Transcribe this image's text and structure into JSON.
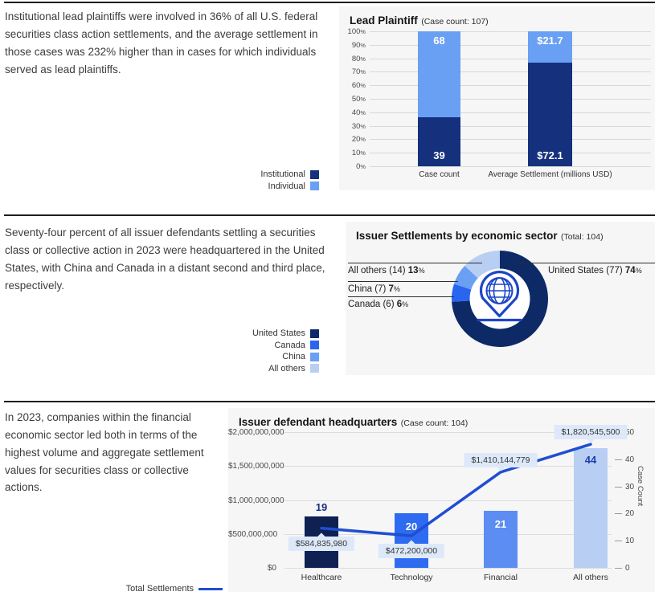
{
  "sections": [
    {
      "text": "Institutional lead plaintiffs were involved in 36% of all U.S. federal securities class action settlements, and the average settlement in those cases was 232% higher than in cases for which individuals served as lead plaintiffs.",
      "legend": [
        {
          "label": "Institutional",
          "color": "#15317E",
          "swatch": "square"
        },
        {
          "label": "Individual",
          "color": "#69A0F4",
          "swatch": "square"
        }
      ]
    },
    {
      "text": "Seventy-four percent of all issuer defendants settling a securities class or collective action in 2023 were headquartered in the United States, with China and Canada in a distant second and third place, respectively.",
      "legend": [
        {
          "label": "United States",
          "color": "#0D2A66",
          "swatch": "square"
        },
        {
          "label": "Canada",
          "color": "#2A65F0",
          "swatch": "square"
        },
        {
          "label": "China",
          "color": "#69A0F4",
          "swatch": "square"
        },
        {
          "label": "All others",
          "color": "#B9CEF3",
          "swatch": "square"
        }
      ]
    },
    {
      "text": "In 2023, companies within the financial economic sector led both in terms of the highest volume and aggregate settlement values for securities class or collective actions.",
      "legend": [
        {
          "label": "Total Settlements",
          "color": "#1F4ED0",
          "swatch": "line"
        }
      ]
    }
  ],
  "chart_data": [
    {
      "type": "bar",
      "variant": "stacked-100-percent",
      "title": "Lead Plaintiff",
      "subtitle": "(Case count: 107)",
      "categories": [
        "Case count",
        "Average Settlement (millions USD)"
      ],
      "series": [
        {
          "name": "Institutional",
          "color": "#15317E",
          "values": [
            39,
            72.1
          ],
          "value_labels": [
            "39",
            "$72.1"
          ]
        },
        {
          "name": "Individual",
          "color": "#69A0F4",
          "values": [
            68,
            21.7
          ],
          "value_labels": [
            "68",
            "$21.7"
          ]
        }
      ],
      "y_ticks_pct": [
        0,
        10,
        20,
        30,
        40,
        50,
        60,
        70,
        80,
        90,
        100
      ],
      "tick_suffix": "%",
      "ylim": [
        0,
        100
      ],
      "grid": true,
      "legend_position": "left-of-chart"
    },
    {
      "type": "pie",
      "variant": "donut",
      "title": "Issuer Settlements by economic sector",
      "subtitle": "(Total: 104)",
      "total": 104,
      "slices": [
        {
          "label": "United States",
          "count": 77,
          "pct": 74,
          "color": "#0D2A66"
        },
        {
          "label": "Canada",
          "count": 6,
          "pct": 6,
          "color": "#2A65F0"
        },
        {
          "label": "China",
          "count": 7,
          "pct": 7,
          "color": "#69A0F4"
        },
        {
          "label": "All others",
          "count": 14,
          "pct": 13,
          "color": "#B9CEF3"
        }
      ],
      "pct_suffix": "%",
      "center_icon": "globe-location-pin-icon",
      "legend_position": "left-of-chart"
    },
    {
      "type": "bar",
      "variant": "combo-bar-line",
      "title": "Issuer defendant headquarters",
      "subtitle": "(Case count: 104)",
      "categories": [
        "Healthcare",
        "Technology",
        "Financial",
        "All others"
      ],
      "bars": {
        "name": "Case count",
        "axis": "right",
        "values": [
          19,
          20,
          21,
          44
        ],
        "colors": [
          "#0E2152",
          "#2E6BF0",
          "#5C8DF3",
          "#B9CEF3"
        ],
        "label_colors": [
          "#15317E",
          "#FFFFFF",
          "#FFFFFF",
          "#1C3FAE"
        ],
        "label_inside": [
          false,
          true,
          true,
          true
        ]
      },
      "line": {
        "name": "Total Settlements",
        "axis": "left",
        "color": "#1F4ED0",
        "values": [
          584835980,
          472200000,
          1410144779,
          1820545500
        ],
        "value_labels": [
          "$584,835,980",
          "$472,200,000",
          "$1,410,144,779",
          "$1,820,545,500"
        ],
        "label_above": [
          false,
          false,
          true,
          true
        ]
      },
      "left_axis": {
        "ticks": [
          "$0",
          "$500,000,000",
          "$1,000,000,000",
          "$1,500,000,000",
          "$2,000,000,000"
        ],
        "max": 2000000000
      },
      "right_axis": {
        "label": "Case Count",
        "ticks": [
          0,
          10,
          20,
          30,
          40,
          50
        ],
        "max": 50
      },
      "grid": true
    }
  ]
}
